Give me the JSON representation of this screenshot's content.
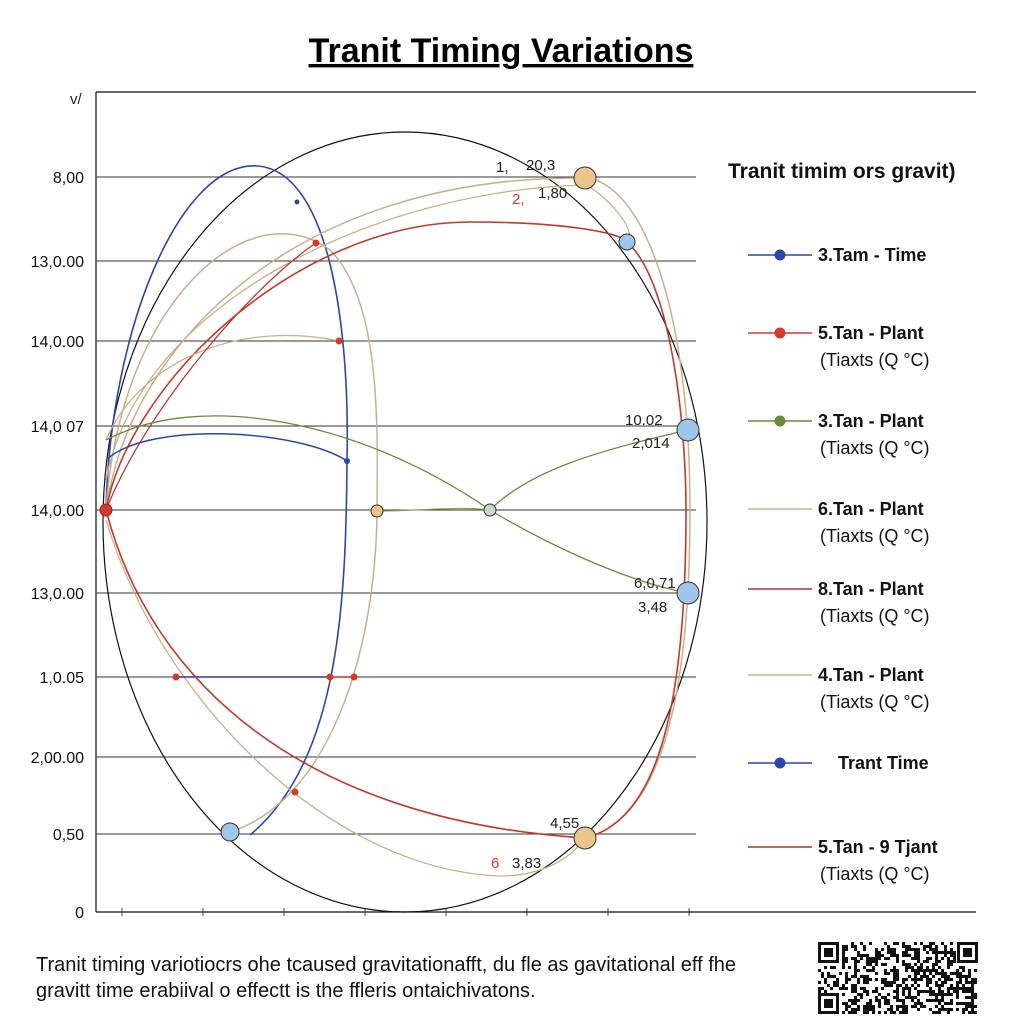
{
  "chart_data": {
    "type": "line",
    "title": "Tranit Timing Variations",
    "y_tick_labels": [
      "0",
      "0,50",
      "2,00.00",
      "1,0.05",
      "13,0.00",
      "14,0.00",
      "14,0 07",
      "14,0.00",
      "13,0.00",
      "8,00"
    ],
    "y_axis_corner_label": "v/",
    "legend": {
      "title": "Tranit timim ors gravit)",
      "position": "right",
      "entries": [
        {
          "name": "3.Tam - Time",
          "sub": "",
          "color": "#2a47a8"
        },
        {
          "name": "5.Tan - Plant",
          "sub": "(Tiaxts (Q °C)",
          "color": "#d23a2c"
        },
        {
          "name": "3.Tan - Plant",
          "sub": "(Tiaxts (Q °C)",
          "color": "#6a8a3a"
        },
        {
          "name": "6.Tan - Plant",
          "sub": "(Tiaxts (Q °C)",
          "color": "#c9b08a"
        },
        {
          "name": "8.Tan - Plant",
          "sub": "(Tiaxts (Q °C)",
          "color": "#a83232"
        },
        {
          "name": "4.Tan - Plant",
          "sub": "(Tiaxts (Q °C)",
          "color": "#c9b08a"
        },
        {
          "name": "Trant Time",
          "sub": "",
          "color": "#2a47a8"
        },
        {
          "name": "5.Tan - 9 Tjant",
          "sub": "(Tiaxts (Q °C)",
          "color": "#a83232"
        }
      ]
    },
    "annotations": [
      {
        "text": "1,",
        "color": "#222"
      },
      {
        "text": "20,3",
        "color": "#222"
      },
      {
        "text": "2,",
        "color": "#d23a2c"
      },
      {
        "text": "1,80",
        "color": "#222"
      },
      {
        "text": "10.02",
        "color": "#222"
      },
      {
        "text": "2,014",
        "color": "#222"
      },
      {
        "text": "6,0,71",
        "color": "#222"
      },
      {
        "text": "3,48",
        "color": "#222"
      },
      {
        "text": "4,55",
        "color": "#222"
      },
      {
        "text": "6",
        "color": "#d23a2c"
      },
      {
        "text": "3,83",
        "color": "#222"
      }
    ],
    "grid": true,
    "colors": {
      "blue": "#2a47a8",
      "red": "#d23a2c",
      "green": "#6a8a3a",
      "tan": "#c9b08a",
      "darkred": "#a83232",
      "marker_blue": "#9ec5ea",
      "marker_tan": "#ebc58a"
    }
  },
  "caption": {
    "line1": "Tranit timing variotiocrs ohe tcaused gravitationafft, du fle as gavitational eff fhe",
    "line2": "gravitt time erabiival o effectt is the ffleris ontaichivatons."
  },
  "qr_icon": "qr-code-icon"
}
